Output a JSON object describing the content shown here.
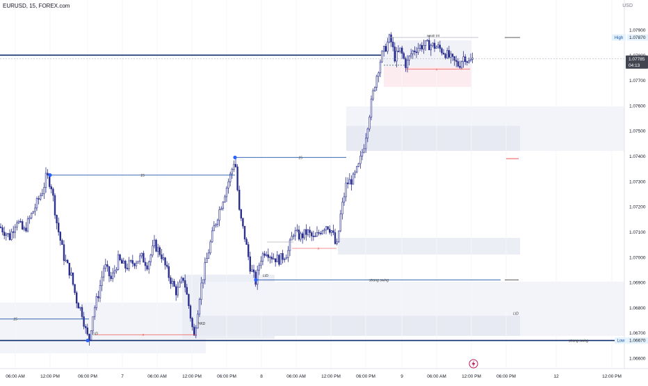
{
  "header": {
    "symbol": "EURUSD, 15, FOREX.com"
  },
  "currency": "USD",
  "colors": {
    "candle": "#2a2f8f",
    "blue_line": "#1e53a8",
    "red_line": "#ef5350",
    "zone": "#eceef6",
    "red_zone": "#fdecef"
  },
  "price_badges": {
    "high": {
      "label": "High",
      "value": "1.07870"
    },
    "current": {
      "value": "1.07785",
      "countdown": "04:13"
    },
    "low": {
      "label": "Low",
      "value": "1.06670"
    }
  },
  "annotations": {
    "weak_int": "weak int",
    "strong_swing": "strong swing",
    "lid": "LID",
    "hkd": "HKD",
    "x": "x",
    "fifteen": "15"
  },
  "chart_data": {
    "type": "candlestick",
    "title": "EURUSD, 15, FOREX.com",
    "ylim": [
      1.0656,
      1.0802
    ],
    "y_ticks": [
      "1.06600",
      "1.06700",
      "1.06800",
      "1.06900",
      "1.07000",
      "1.07100",
      "1.07200",
      "1.07300",
      "1.07400",
      "1.07500",
      "1.07600",
      "1.07700",
      "1.07800",
      "1.07900"
    ],
    "x_tick_labels": [
      "06:00 AM",
      "12:00 PM",
      "06:00 PM",
      "7",
      "06:00 AM",
      "12:00 PM",
      "06:00 PM",
      "8",
      "06:00 AM",
      "12:00 PM",
      "06:00 PM",
      "9",
      "06:00 AM",
      "12:00 PM",
      "06:00 PM",
      "12",
      "12:00 PM"
    ],
    "price_path": [
      [
        0,
        1.0712
      ],
      [
        14,
        1.0708
      ],
      [
        24,
        1.0715
      ],
      [
        34,
        1.071
      ],
      [
        44,
        1.0716
      ],
      [
        54,
        1.0722
      ],
      [
        62,
        1.0727
      ],
      [
        67,
        1.07325
      ],
      [
        74,
        1.0728
      ],
      [
        82,
        1.0713
      ],
      [
        92,
        1.07
      ],
      [
        102,
        1.0693
      ],
      [
        110,
        1.0683
      ],
      [
        118,
        1.0678
      ],
      [
        124,
        1.067
      ],
      [
        128,
        1.0667
      ],
      [
        134,
        1.0678
      ],
      [
        142,
        1.0686
      ],
      [
        150,
        1.0697
      ],
      [
        160,
        1.0691
      ],
      [
        170,
        1.0699
      ],
      [
        180,
        1.0696
      ],
      [
        192,
        1.0698
      ],
      [
        204,
        1.07
      ],
      [
        212,
        1.0697
      ],
      [
        222,
        1.0705
      ],
      [
        232,
        1.0701
      ],
      [
        242,
        1.0693
      ],
      [
        254,
        1.0686
      ],
      [
        264,
        1.0692
      ],
      [
        272,
        1.068
      ],
      [
        279,
        1.0668
      ],
      [
        288,
        1.0687
      ],
      [
        298,
        1.07
      ],
      [
        308,
        1.0712
      ],
      [
        316,
        1.0719
      ],
      [
        324,
        1.0726
      ],
      [
        332,
        1.0733
      ],
      [
        338,
        1.07395
      ],
      [
        344,
        1.0718
      ],
      [
        352,
        1.0708
      ],
      [
        360,
        1.0696
      ],
      [
        368,
        1.069
      ],
      [
        374,
        1.0699
      ],
      [
        382,
        1.0703
      ],
      [
        392,
        1.07
      ],
      [
        402,
        1.0699
      ],
      [
        414,
        1.0702
      ],
      [
        422,
        1.071
      ],
      [
        432,
        1.0708
      ],
      [
        442,
        1.071
      ],
      [
        452,
        1.0707
      ],
      [
        462,
        1.0711
      ],
      [
        470,
        1.0713
      ],
      [
        478,
        1.071
      ],
      [
        484,
        1.0703
      ],
      [
        490,
        1.0717
      ],
      [
        498,
        1.0729
      ],
      [
        508,
        1.0731
      ],
      [
        516,
        1.0736
      ],
      [
        524,
        1.0745
      ],
      [
        532,
        1.0758
      ],
      [
        540,
        1.077
      ],
      [
        548,
        1.0779
      ],
      [
        556,
        1.0784
      ],
      [
        561,
        1.0787
      ],
      [
        568,
        1.0779
      ],
      [
        576,
        1.0782
      ],
      [
        584,
        1.0776
      ],
      [
        592,
        1.0781
      ],
      [
        600,
        1.0783
      ],
      [
        610,
        1.0784
      ],
      [
        620,
        1.0784
      ],
      [
        630,
        1.0783
      ],
      [
        640,
        1.0781
      ],
      [
        650,
        1.0778
      ],
      [
        660,
        1.0776
      ],
      [
        668,
        1.078
      ],
      [
        674,
        1.0777
      ],
      [
        680,
        1.07785
      ]
    ],
    "levels": [
      {
        "name": "high",
        "price": 1.0787
      },
      {
        "name": "strong-swing-low",
        "price": 1.0667
      },
      {
        "name": "strong-swing-mid",
        "price": 1.0691
      },
      {
        "name": "swing-15-left",
        "price": 1.07325
      },
      {
        "name": "swing-15-mid",
        "price": 1.07395
      },
      {
        "name": "dark-line",
        "price": 1.078
      },
      {
        "name": "current",
        "price": 1.07785
      }
    ]
  }
}
